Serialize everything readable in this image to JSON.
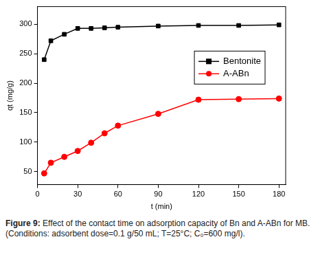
{
  "chart_data": {
    "type": "line",
    "x_label": "t (min)",
    "y_label": "qt (mg/g)",
    "caption_label": "Figure 9:",
    "caption": "Effect of the contact time on adsorption capacity of Bn and A-ABn for MB.(Conditions: adsorbent dose=0.1 g/50 mL; T=25°C; C₀=600 mg/l).",
    "x": [
      5,
      10,
      20,
      30,
      40,
      50,
      60,
      90,
      120,
      150,
      180
    ],
    "series": [
      {
        "name": "Bentonite",
        "color": "#000000",
        "marker": "square",
        "line_style": "solid",
        "values": [
          240,
          272,
          283,
          293,
          293,
          294,
          295,
          297,
          298,
          298,
          299
        ]
      },
      {
        "name": "A-ABn",
        "color": "#ff0000",
        "marker": "circle",
        "line_style": "solid",
        "values": [
          47,
          65,
          75,
          85,
          99,
          115,
          128,
          148,
          172,
          173,
          174
        ]
      }
    ],
    "xlim": [
      0,
      185
    ],
    "xticks": [
      0,
      30,
      60,
      90,
      120,
      150,
      180
    ],
    "ylim": [
      28,
      330
    ],
    "yticks": [
      50,
      100,
      150,
      200,
      250,
      300
    ],
    "grid": false,
    "legend": "upper right"
  }
}
